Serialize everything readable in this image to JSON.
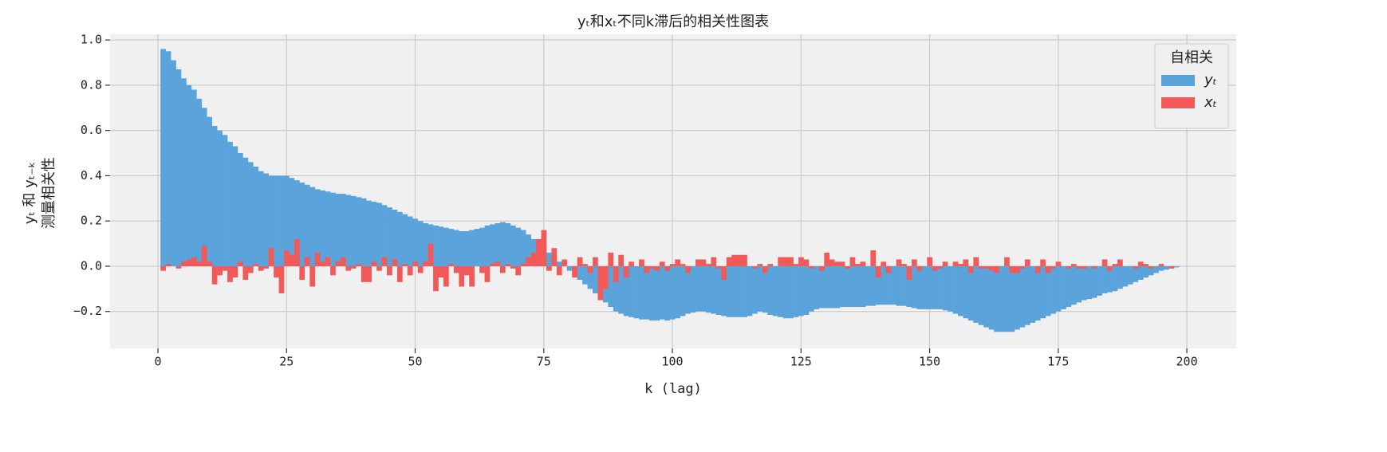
{
  "chart_data": {
    "type": "bar",
    "title": "yₜ和xₜ不同k滞后的相关性图表",
    "xlabel": "k (lag)",
    "ylabel": [
      "yₜ 和 yₜ₋ₖ",
      "测量相关性"
    ],
    "legend_title": "自相关",
    "legend": "upper right",
    "grid": true,
    "xlim": [
      -9.3,
      209.6
    ],
    "ylim": [
      -0.363,
      1.025
    ],
    "xticks": [
      0,
      25,
      50,
      75,
      100,
      125,
      150,
      175,
      200
    ],
    "yticks": [
      {
        "value": -0.2,
        "label": "−0.2"
      },
      {
        "value": 0,
        "label": "0.0"
      },
      0.2,
      0.4,
      0.6,
      0.8,
      {
        "value": 1,
        "label": "1.0"
      }
    ],
    "x": [
      1,
      2,
      3,
      4,
      5,
      6,
      7,
      8,
      9,
      10,
      11,
      12,
      13,
      14,
      15,
      16,
      17,
      18,
      19,
      20,
      21,
      22,
      23,
      24,
      25,
      26,
      27,
      28,
      29,
      30,
      31,
      32,
      33,
      34,
      35,
      36,
      37,
      38,
      39,
      40,
      41,
      42,
      43,
      44,
      45,
      46,
      47,
      48,
      49,
      50,
      51,
      52,
      53,
      54,
      55,
      56,
      57,
      58,
      59,
      60,
      61,
      62,
      63,
      64,
      65,
      66,
      67,
      68,
      69,
      70,
      71,
      72,
      73,
      74,
      75,
      76,
      77,
      78,
      79,
      80,
      81,
      82,
      83,
      84,
      85,
      86,
      87,
      88,
      89,
      90,
      91,
      92,
      93,
      94,
      95,
      96,
      97,
      98,
      99,
      100,
      101,
      102,
      103,
      104,
      105,
      106,
      107,
      108,
      109,
      110,
      111,
      112,
      113,
      114,
      115,
      116,
      117,
      118,
      119,
      120,
      121,
      122,
      123,
      124,
      125,
      126,
      127,
      128,
      129,
      130,
      131,
      132,
      133,
      134,
      135,
      136,
      137,
      138,
      139,
      140,
      141,
      142,
      143,
      144,
      145,
      146,
      147,
      148,
      149,
      150,
      151,
      152,
      153,
      154,
      155,
      156,
      157,
      158,
      159,
      160,
      161,
      162,
      163,
      164,
      165,
      166,
      167,
      168,
      169,
      170,
      171,
      172,
      173,
      174,
      175,
      176,
      177,
      178,
      179,
      180,
      181,
      182,
      183,
      184,
      185,
      186,
      187,
      188,
      189,
      190,
      191,
      192,
      193,
      194,
      195,
      196,
      197,
      198,
      199
    ],
    "series": [
      {
        "name": "yₜ",
        "color": "#5ba3db",
        "values": [
          0.96,
          0.95,
          0.91,
          0.87,
          0.83,
          0.8,
          0.78,
          0.74,
          0.7,
          0.66,
          0.62,
          0.6,
          0.58,
          0.55,
          0.53,
          0.5,
          0.48,
          0.46,
          0.44,
          0.42,
          0.41,
          0.4,
          0.4,
          0.4,
          0.4,
          0.39,
          0.38,
          0.37,
          0.36,
          0.35,
          0.34,
          0.335,
          0.33,
          0.325,
          0.32,
          0.32,
          0.315,
          0.31,
          0.305,
          0.3,
          0.29,
          0.285,
          0.28,
          0.27,
          0.26,
          0.25,
          0.24,
          0.23,
          0.22,
          0.21,
          0.2,
          0.19,
          0.185,
          0.18,
          0.175,
          0.17,
          0.165,
          0.16,
          0.155,
          0.155,
          0.16,
          0.165,
          0.17,
          0.18,
          0.185,
          0.19,
          0.195,
          0.19,
          0.18,
          0.17,
          0.16,
          0.14,
          0.12,
          0.1,
          0.08,
          0.06,
          0.04,
          0.02,
          0,
          -0.02,
          -0.04,
          -0.06,
          -0.08,
          -0.1,
          -0.12,
          -0.14,
          -0.16,
          -0.18,
          -0.2,
          -0.21,
          -0.22,
          -0.225,
          -0.23,
          -0.235,
          -0.235,
          -0.24,
          -0.24,
          -0.235,
          -0.24,
          -0.235,
          -0.23,
          -0.22,
          -0.21,
          -0.205,
          -0.2,
          -0.2,
          -0.205,
          -0.21,
          -0.215,
          -0.22,
          -0.225,
          -0.225,
          -0.225,
          -0.225,
          -0.22,
          -0.21,
          -0.2,
          -0.205,
          -0.215,
          -0.22,
          -0.225,
          -0.23,
          -0.23,
          -0.225,
          -0.22,
          -0.215,
          -0.2,
          -0.19,
          -0.185,
          -0.185,
          -0.185,
          -0.185,
          -0.18,
          -0.18,
          -0.18,
          -0.18,
          -0.18,
          -0.175,
          -0.175,
          -0.17,
          -0.17,
          -0.17,
          -0.17,
          -0.175,
          -0.175,
          -0.18,
          -0.185,
          -0.19,
          -0.19,
          -0.19,
          -0.19,
          -0.19,
          -0.195,
          -0.2,
          -0.21,
          -0.22,
          -0.23,
          -0.24,
          -0.25,
          -0.26,
          -0.27,
          -0.28,
          -0.29,
          -0.29,
          -0.29,
          -0.29,
          -0.28,
          -0.27,
          -0.26,
          -0.25,
          -0.24,
          -0.23,
          -0.22,
          -0.21,
          -0.2,
          -0.19,
          -0.18,
          -0.17,
          -0.16,
          -0.15,
          -0.145,
          -0.14,
          -0.13,
          -0.12,
          -0.115,
          -0.11,
          -0.1,
          -0.09,
          -0.08,
          -0.07,
          -0.06,
          -0.05,
          -0.04,
          -0.03,
          -0.02,
          -0.015,
          -0.01,
          -0.005,
          0
        ]
      },
      {
        "name": "xₜ",
        "color": "#f25a5a",
        "values": [
          -0.02,
          0.01,
          0,
          -0.01,
          0.02,
          0.03,
          0.04,
          0.02,
          0.09,
          0.02,
          -0.08,
          -0.04,
          -0.02,
          -0.07,
          -0.05,
          0.02,
          -0.06,
          -0.03,
          0.01,
          -0.02,
          -0.01,
          0.08,
          -0.05,
          -0.12,
          0.07,
          0.05,
          0.12,
          -0.06,
          0.04,
          -0.09,
          0.06,
          0.02,
          0.04,
          -0.04,
          0.02,
          0.04,
          -0.02,
          -0.01,
          0.01,
          -0.07,
          -0.07,
          0.02,
          -0.02,
          0.04,
          -0.04,
          0.03,
          -0.07,
          0.01,
          -0.04,
          0.02,
          -0.03,
          0.02,
          0.1,
          -0.11,
          -0.05,
          -0.09,
          0.01,
          -0.03,
          -0.09,
          -0.04,
          -0.09,
          0,
          -0.03,
          -0.07,
          0.01,
          0.02,
          -0.03,
          0.01,
          -0.01,
          -0.04,
          0.01,
          0.04,
          0.06,
          0.12,
          0.16,
          -0.02,
          0.08,
          -0.04,
          0.03,
          0,
          -0.05,
          0.04,
          0.01,
          -0.03,
          0.04,
          -0.15,
          -0.1,
          0.06,
          -0.07,
          0.05,
          -0.05,
          0.02,
          0,
          0.03,
          -0.03,
          -0.01,
          -0.02,
          0.02,
          -0.02,
          0.01,
          0.03,
          0.01,
          -0.03,
          0,
          0.03,
          0.03,
          0.01,
          0.04,
          -0.01,
          -0.06,
          0.04,
          0.05,
          0.05,
          0.05,
          0,
          -0.01,
          0.01,
          -0.03,
          0.01,
          0,
          0.04,
          0.04,
          0.04,
          0.01,
          0.04,
          0.03,
          -0.01,
          0,
          -0.02,
          0.06,
          0.03,
          0.02,
          0.02,
          -0.01,
          0.04,
          0.01,
          0.02,
          0,
          0.07,
          -0.05,
          0.02,
          -0.03,
          0,
          0.03,
          0.01,
          -0.06,
          0.03,
          -0.02,
          0,
          0.04,
          -0.02,
          -0.01,
          0.02,
          0,
          0.02,
          0.01,
          0.03,
          -0.03,
          0.04,
          -0.01,
          -0.01,
          -0.02,
          -0.03,
          0,
          0.04,
          -0.03,
          -0.03,
          -0.01,
          0.03,
          0,
          -0.03,
          0.03,
          -0.03,
          -0.01,
          0.02,
          0,
          -0.01,
          0.01,
          -0.01,
          -0.01,
          0,
          -0.01,
          0,
          0.03,
          -0.02,
          0.01,
          0.03,
          0,
          0,
          -0.01,
          0.02,
          0.01,
          -0.01,
          0,
          0.01,
          0,
          -0.01,
          0,
          0
        ]
      }
    ]
  }
}
